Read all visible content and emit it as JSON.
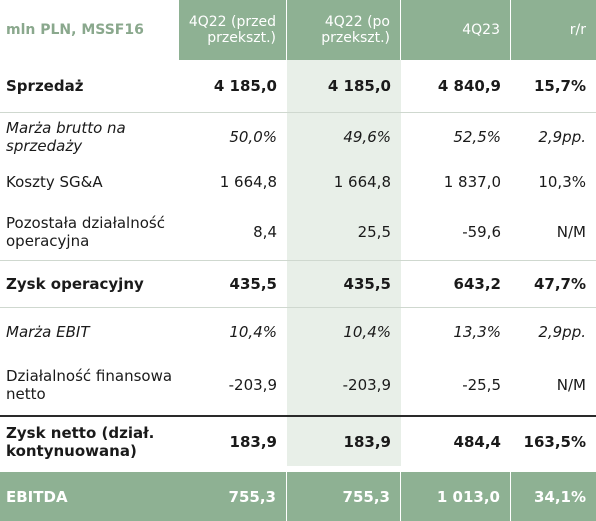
{
  "header": {
    "unit_label": "mln PLN, MSSF16",
    "col1": "4Q22 (przed przekszt.)",
    "col2": "4Q22 (po przekszt.)",
    "col3": "4Q23",
    "col4": "r/r"
  },
  "rows": [
    {
      "label": "Sprzedaż",
      "v1": "4 185,0",
      "v2": "4 185,0",
      "v3": "4 840,9",
      "v4": "15,7%"
    },
    {
      "label": "Marża brutto na sprzedaży",
      "v1": "50,0%",
      "v2": "49,6%",
      "v3": "52,5%",
      "v4": "2,9pp."
    },
    {
      "label": "Koszty SG&A",
      "v1": "1 664,8",
      "v2": "1 664,8",
      "v3": "1 837,0",
      "v4": "10,3%"
    },
    {
      "label": "Pozostała działalność operacyjna",
      "v1": "8,4",
      "v2": "25,5",
      "v3": "-59,6",
      "v4": "N/M"
    },
    {
      "label": "Zysk operacyjny",
      "v1": "435,5",
      "v2": "435,5",
      "v3": "643,2",
      "v4": "47,7%"
    },
    {
      "label": "Marża EBIT",
      "v1": "10,4%",
      "v2": "10,4%",
      "v3": "13,3%",
      "v4": "2,9pp."
    },
    {
      "label": "Działalność finansowa netto",
      "v1": "-203,9",
      "v2": "-203,9",
      "v3": "-25,5",
      "v4": "N/M"
    },
    {
      "label": "Zysk netto (dział. kontynuowana)",
      "v1": "183,9",
      "v2": "183,9",
      "v3": "484,4",
      "v4": "163,5%"
    }
  ],
  "footer": {
    "label": "EBITDA",
    "v1": "755,3",
    "v2": "755,3",
    "v3": "1 013,0",
    "v4": "34,1%"
  },
  "colors": {
    "header_green": "#8eb193",
    "shade_green": "#e8efe8",
    "unit_label_green": "#8aa88d"
  }
}
